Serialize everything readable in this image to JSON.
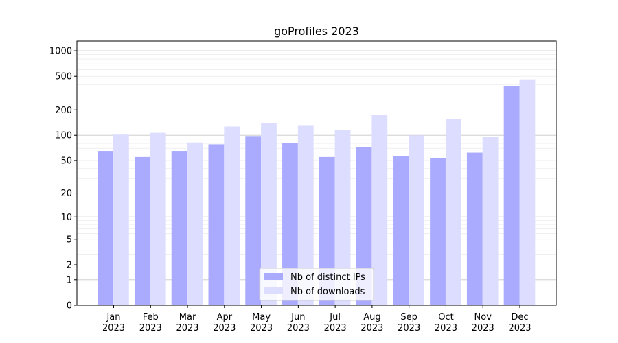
{
  "chart_data": {
    "type": "bar",
    "title": "goProfiles 2023",
    "xlabel": "",
    "ylabel": "",
    "yscale": "symlog",
    "ylim": [
      0,
      1300
    ],
    "grid": true,
    "legend_placement": "bottom-center",
    "categories": [
      [
        "Jan",
        "2023"
      ],
      [
        "Feb",
        "2023"
      ],
      [
        "Mar",
        "2023"
      ],
      [
        "Apr",
        "2023"
      ],
      [
        "May",
        "2023"
      ],
      [
        "Jun",
        "2023"
      ],
      [
        "Jul",
        "2023"
      ],
      [
        "Aug",
        "2023"
      ],
      [
        "Sep",
        "2023"
      ],
      [
        "Oct",
        "2023"
      ],
      [
        "Nov",
        "2023"
      ],
      [
        "Dec",
        "2023"
      ]
    ],
    "yticks": [
      0,
      1,
      2,
      5,
      10,
      20,
      50,
      100,
      200,
      500,
      1000
    ],
    "ytick_labels": [
      "0",
      "1",
      "2",
      "5",
      "10",
      "20",
      "50",
      "100",
      "200",
      "500",
      "1000"
    ],
    "series": [
      {
        "name": "Nb of distinct IPs",
        "color": "#aaaaff",
        "values": [
          65,
          55,
          65,
          78,
          98,
          81,
          55,
          72,
          56,
          53,
          62,
          380
        ]
      },
      {
        "name": "Nb of downloads",
        "color": "#ddddff",
        "values": [
          102,
          107,
          82,
          127,
          140,
          132,
          116,
          175,
          100,
          157,
          96,
          460
        ]
      }
    ]
  }
}
